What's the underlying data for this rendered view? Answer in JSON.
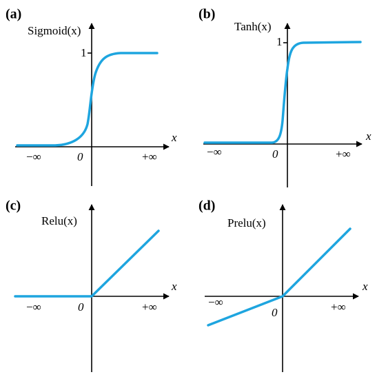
{
  "panels": [
    {
      "label": "(a)",
      "function": "Sigmoid(x)",
      "y_tick": "1",
      "x_axis": "x",
      "origin": "0",
      "x_min": "−∞",
      "x_max": "+∞"
    },
    {
      "label": "(b)",
      "function": "Tanh(x)",
      "y_tick": "1",
      "x_axis": "x",
      "origin": "0",
      "x_min": "−∞",
      "x_max": "+∞"
    },
    {
      "label": "(c)",
      "function": "Relu(x)",
      "x_axis": "x",
      "origin": "0",
      "x_min": "−∞",
      "x_max": "+∞"
    },
    {
      "label": "(d)",
      "function": "Prelu(x)",
      "x_axis": "x",
      "origin": "0",
      "x_min": "−∞",
      "x_max": "+∞"
    }
  ]
}
